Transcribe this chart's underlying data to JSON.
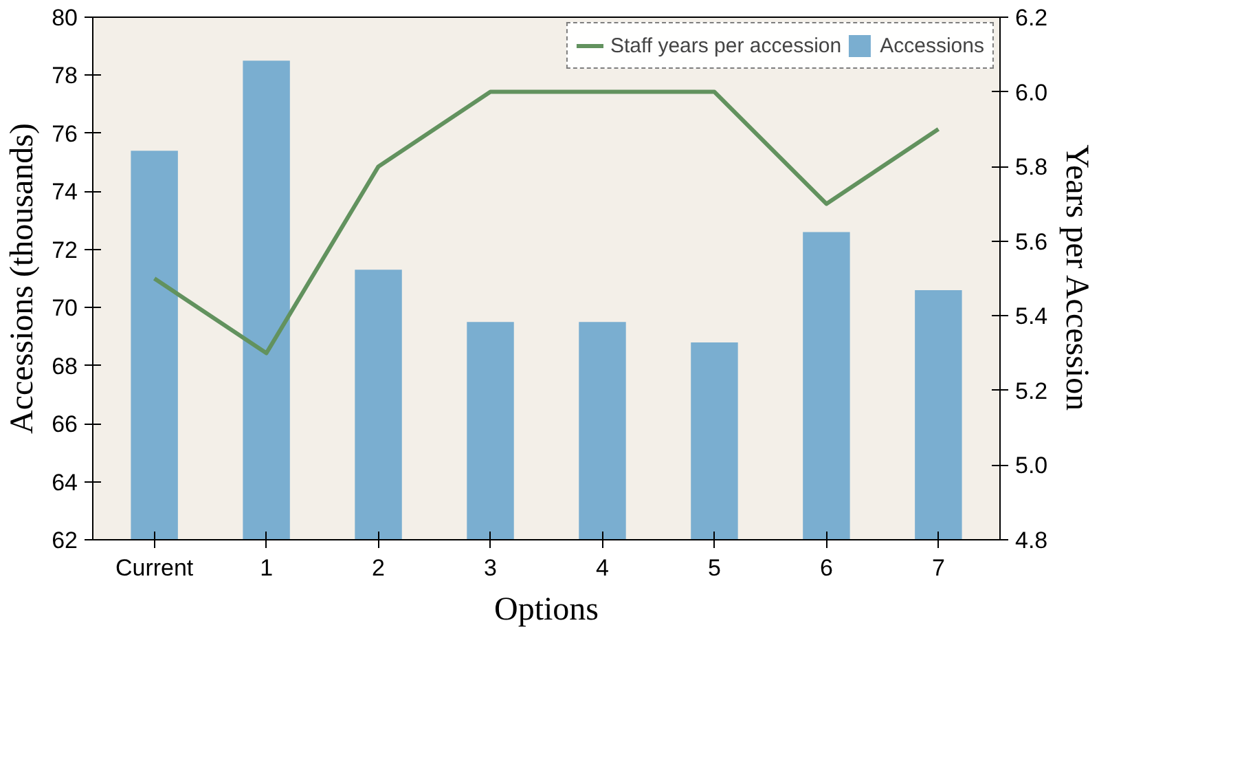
{
  "chart_data": {
    "type": "bar",
    "categories": [
      "Current",
      "1",
      "2",
      "3",
      "4",
      "5",
      "6",
      "7"
    ],
    "xlabel": "Options",
    "ylabel": "Accessions (thousands)",
    "y2label": "Years per Accession",
    "series": [
      {
        "name": "Accessions",
        "color": "#7aaed0",
        "values": [
          75.4,
          78.5,
          71.3,
          69.5,
          69.5,
          68.8,
          72.6,
          70.6
        ]
      },
      {
        "name": "Staff years per accession",
        "type": "line",
        "axis": "y2",
        "color": "#62925e",
        "values": [
          5.5,
          5.3,
          5.8,
          6.0,
          6.0,
          6.0,
          5.7,
          5.9
        ]
      }
    ],
    "ylim": [
      62,
      80
    ],
    "yticks": [
      62,
      64,
      66,
      68,
      70,
      72,
      74,
      76,
      78,
      80
    ],
    "y2lim": [
      4.8,
      6.2
    ],
    "y2ticks": [
      {
        "value": 4.8,
        "label": "4.8"
      },
      {
        "value": 5.0,
        "label": "5.0"
      },
      {
        "value": 5.2,
        "label": "5.2"
      },
      {
        "value": 5.4,
        "label": "5.4"
      },
      {
        "value": 5.6,
        "label": "5.6"
      },
      {
        "value": 5.8,
        "label": "5.8"
      },
      {
        "value": 6.0,
        "label": "6.0"
      },
      {
        "value": 6.2,
        "label": "6.2"
      }
    ],
    "grid": false,
    "legend": "top right"
  }
}
